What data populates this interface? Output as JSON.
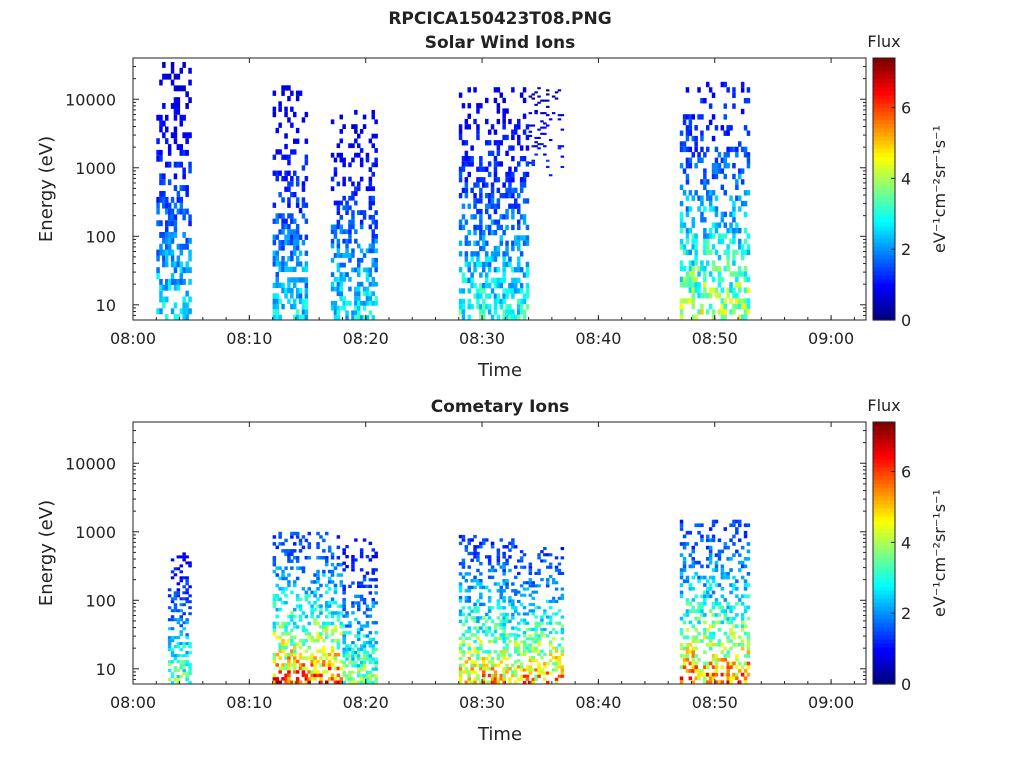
{
  "figure_title": "RPCICA150423T08.PNG",
  "chart_data": [
    {
      "type": "heatmap",
      "title": "Solar Wind Ions",
      "xlabel": "Time",
      "ylabel": "Energy (eV)",
      "x_ticks": [
        "08:00",
        "08:10",
        "08:20",
        "08:30",
        "08:40",
        "08:50",
        "09:00"
      ],
      "x_range": [
        "08:00",
        "09:03"
      ],
      "y_scale": "log",
      "y_ticks": [
        "10",
        "100",
        "1000",
        "10000"
      ],
      "y_range": [
        6,
        40000
      ],
      "colorbar": {
        "title": "Flux",
        "label": "eV⁻¹cm⁻²sr⁻¹s⁻¹",
        "range": [
          0,
          7.4
        ],
        "ticks": [
          "0",
          "2",
          "4",
          "6"
        ],
        "colormap": "jet"
      },
      "bursts": [
        {
          "t0": "08:02",
          "t1": "08:05",
          "e_min": 6,
          "e_max": 35000,
          "flux_max": 3.4,
          "sparse": false
        },
        {
          "t0": "08:12",
          "t1": "08:15",
          "e_min": 6,
          "e_max": 16000,
          "flux_max": 3.4,
          "sparse": false
        },
        {
          "t0": "08:17",
          "t1": "08:21",
          "e_min": 6,
          "e_max": 7000,
          "flux_max": 3.6,
          "sparse": false
        },
        {
          "t0": "08:28",
          "t1": "08:34",
          "e_min": 6,
          "e_max": 15000,
          "flux_max": 3.9,
          "sparse": false
        },
        {
          "t0": "08:34",
          "t1": "08:37",
          "e_min": 700,
          "e_max": 15000,
          "flux_max": 2.0,
          "sparse": true
        },
        {
          "t0": "08:47",
          "t1": "08:53",
          "e_min": 6,
          "e_max": 18000,
          "flux_max": 5.2,
          "sparse": false
        }
      ]
    },
    {
      "type": "heatmap",
      "title": "Cometary Ions",
      "xlabel": "Time",
      "ylabel": "Energy (eV)",
      "x_ticks": [
        "08:00",
        "08:10",
        "08:20",
        "08:30",
        "08:40",
        "08:50",
        "09:00"
      ],
      "x_range": [
        "08:00",
        "09:03"
      ],
      "y_scale": "log",
      "y_ticks": [
        "10",
        "100",
        "1000",
        "10000"
      ],
      "y_range": [
        6,
        40000
      ],
      "colorbar": {
        "title": "Flux",
        "label": "eV⁻¹cm⁻²sr⁻¹s⁻¹",
        "range": [
          0,
          7.4
        ],
        "ticks": [
          "0",
          "2",
          "4",
          "6"
        ],
        "colormap": "jet"
      },
      "bursts": [
        {
          "t0": "08:03",
          "t1": "08:05",
          "e_min": 6,
          "e_max": 500,
          "flux_max": 4.6,
          "sparse": false
        },
        {
          "t0": "08:12",
          "t1": "08:18",
          "e_min": 6,
          "e_max": 1000,
          "flux_max": 7.2,
          "sparse": false
        },
        {
          "t0": "08:18",
          "t1": "08:21",
          "e_min": 6,
          "e_max": 800,
          "flux_max": 4.8,
          "sparse": false
        },
        {
          "t0": "08:28",
          "t1": "08:33",
          "e_min": 6,
          "e_max": 900,
          "flux_max": 6.6,
          "sparse": false
        },
        {
          "t0": "08:33",
          "t1": "08:37",
          "e_min": 6,
          "e_max": 600,
          "flux_max": 6.8,
          "sparse": false
        },
        {
          "t0": "08:47",
          "t1": "08:53",
          "e_min": 6,
          "e_max": 1500,
          "flux_max": 7.0,
          "sparse": false
        }
      ]
    }
  ]
}
